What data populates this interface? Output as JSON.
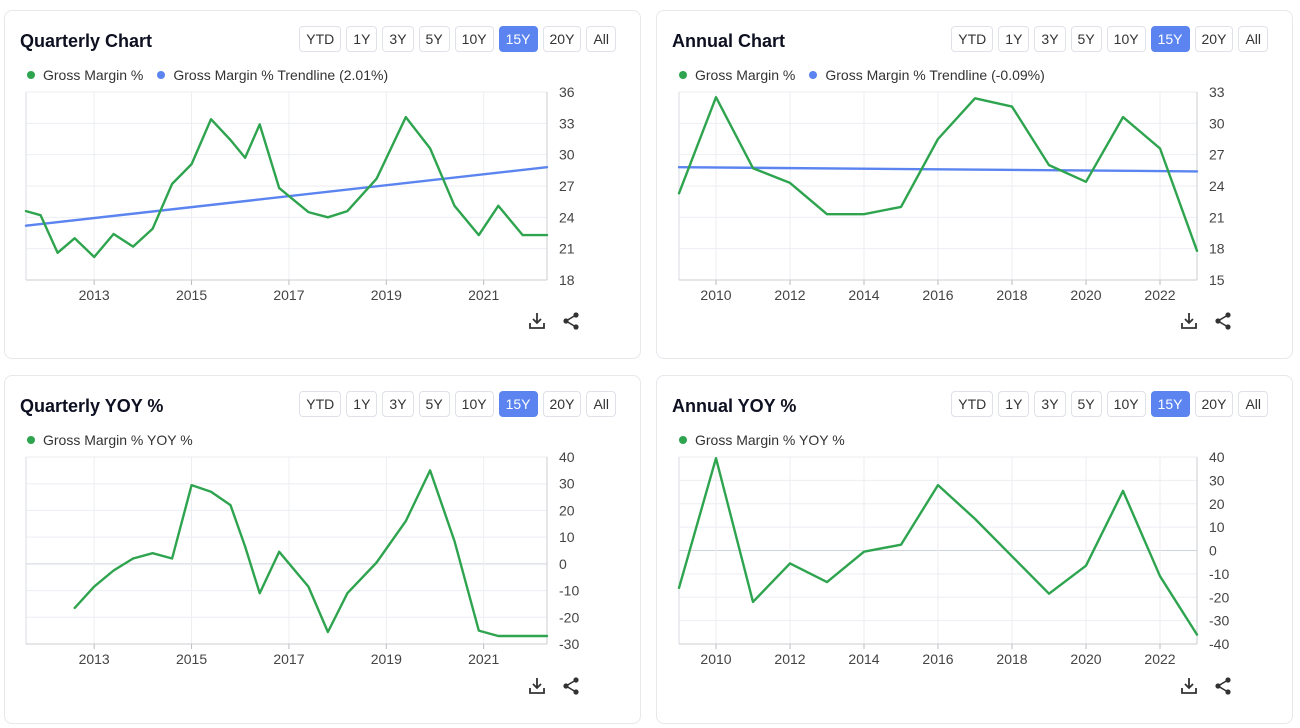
{
  "range_buttons": [
    "YTD",
    "1Y",
    "3Y",
    "5Y",
    "10Y",
    "15Y",
    "20Y",
    "All"
  ],
  "active_range": "15Y",
  "colors": {
    "green": "#2ea44f",
    "blue": "#5b84f0",
    "active": "#5b84f0"
  },
  "icons": {
    "download": "download-icon",
    "share": "share-icon"
  },
  "cards": [
    {
      "title": "Quarterly Chart",
      "legend": [
        {
          "label": "Gross Margin %",
          "color": "#2ea44f"
        },
        {
          "label": "Gross Margin % Trendline (2.01%)",
          "color": "#5b84f0"
        }
      ]
    },
    {
      "title": "Annual Chart",
      "legend": [
        {
          "label": "Gross Margin %",
          "color": "#2ea44f"
        },
        {
          "label": "Gross Margin % Trendline (-0.09%)",
          "color": "#5b84f0"
        }
      ]
    },
    {
      "title": "Quarterly YOY %",
      "legend": [
        {
          "label": "Gross Margin % YOY %",
          "color": "#2ea44f"
        }
      ]
    },
    {
      "title": "Annual YOY %",
      "legend": [
        {
          "label": "Gross Margin % YOY %",
          "color": "#2ea44f"
        }
      ]
    }
  ],
  "chart_data": [
    {
      "type": "line",
      "title": "Quarterly Chart",
      "xlim": [
        2011.6,
        2022.3
      ],
      "ylim": [
        18,
        36
      ],
      "xticks": [
        2013,
        2015,
        2017,
        2019,
        2021
      ],
      "yticks": [
        18,
        21,
        24,
        27,
        30,
        33,
        36
      ],
      "series": [
        {
          "name": "Gross Margin %",
          "color": "#2ea44f",
          "x": [
            2011.6,
            2011.9,
            2012.25,
            2012.6,
            2013.0,
            2013.4,
            2013.8,
            2014.2,
            2014.6,
            2015.0,
            2015.4,
            2015.8,
            2016.1,
            2016.4,
            2016.8,
            2017.4,
            2017.8,
            2018.2,
            2018.8,
            2019.4,
            2019.9,
            2020.4,
            2020.9,
            2021.3,
            2021.8,
            2022.3
          ],
          "values": [
            24.6,
            24.2,
            20.6,
            22.0,
            20.2,
            22.4,
            21.2,
            22.9,
            27.2,
            29.1,
            33.4,
            31.4,
            29.7,
            32.9,
            26.8,
            24.5,
            24.0,
            24.6,
            27.7,
            33.6,
            30.6,
            25.1,
            22.3,
            25.1,
            22.3,
            22.3
          ]
        },
        {
          "name": "Gross Margin % Trendline (2.01%)",
          "color": "#5b84f0",
          "x": [
            2011.6,
            2022.3
          ],
          "values": [
            23.2,
            28.8
          ]
        }
      ]
    },
    {
      "type": "line",
      "title": "Annual Chart",
      "xlim": [
        2009,
        2023
      ],
      "ylim": [
        15,
        33
      ],
      "xticks": [
        2010,
        2012,
        2014,
        2016,
        2018,
        2020,
        2022
      ],
      "yticks": [
        15,
        18,
        21,
        24,
        27,
        30,
        33
      ],
      "series": [
        {
          "name": "Gross Margin %",
          "color": "#2ea44f",
          "x": [
            2009,
            2010,
            2011,
            2012,
            2013,
            2014,
            2015,
            2016,
            2017,
            2018,
            2019,
            2020,
            2021,
            2022,
            2023
          ],
          "values": [
            23.3,
            32.5,
            25.7,
            24.3,
            21.3,
            21.3,
            22.0,
            28.5,
            32.4,
            31.6,
            26.0,
            24.4,
            30.6,
            27.6,
            17.8
          ]
        },
        {
          "name": "Gross Margin % Trendline (-0.09%)",
          "color": "#5b84f0",
          "x": [
            2009,
            2023
          ],
          "values": [
            25.8,
            25.4
          ]
        }
      ]
    },
    {
      "type": "line",
      "title": "Quarterly YOY %",
      "xlim": [
        2011.6,
        2022.3
      ],
      "ylim": [
        -30,
        40
      ],
      "xticks": [
        2013,
        2015,
        2017,
        2019,
        2021
      ],
      "yticks": [
        -30,
        -20,
        -10,
        0,
        10,
        20,
        30,
        40
      ],
      "series": [
        {
          "name": "Gross Margin % YOY %",
          "color": "#2ea44f",
          "x": [
            2012.6,
            2013.0,
            2013.4,
            2013.8,
            2014.2,
            2014.6,
            2015.0,
            2015.4,
            2015.8,
            2016.1,
            2016.4,
            2016.8,
            2017.4,
            2017.8,
            2018.2,
            2018.8,
            2019.4,
            2019.9,
            2020.4,
            2020.9,
            2021.3,
            2021.8,
            2022.3
          ],
          "values": [
            -16.5,
            -8.5,
            -2.5,
            2.0,
            4.0,
            2.0,
            29.5,
            27.0,
            22.0,
            6.5,
            -11.0,
            4.5,
            -8.5,
            -25.5,
            -11.0,
            0.5,
            16.0,
            35.0,
            8.5,
            -25.0,
            -27.0,
            -27.0,
            -27.0
          ]
        }
      ]
    },
    {
      "type": "line",
      "title": "Annual YOY %",
      "xlim": [
        2009,
        2023
      ],
      "ylim": [
        -40,
        40
      ],
      "xticks": [
        2010,
        2012,
        2014,
        2016,
        2018,
        2020,
        2022
      ],
      "yticks": [
        -40,
        -30,
        -20,
        -10,
        0,
        10,
        20,
        30,
        40
      ],
      "series": [
        {
          "name": "Gross Margin % YOY %",
          "color": "#2ea44f",
          "x": [
            2009,
            2010,
            2011,
            2012,
            2013,
            2014,
            2015,
            2016,
            2017,
            2018,
            2019,
            2020,
            2021,
            2022,
            2023
          ],
          "values": [
            -16.0,
            39.5,
            -22.0,
            -5.5,
            -13.5,
            -0.5,
            2.5,
            28.0,
            13.5,
            -2.5,
            -18.5,
            -6.5,
            25.5,
            -11.0,
            -36.0
          ]
        }
      ]
    }
  ]
}
